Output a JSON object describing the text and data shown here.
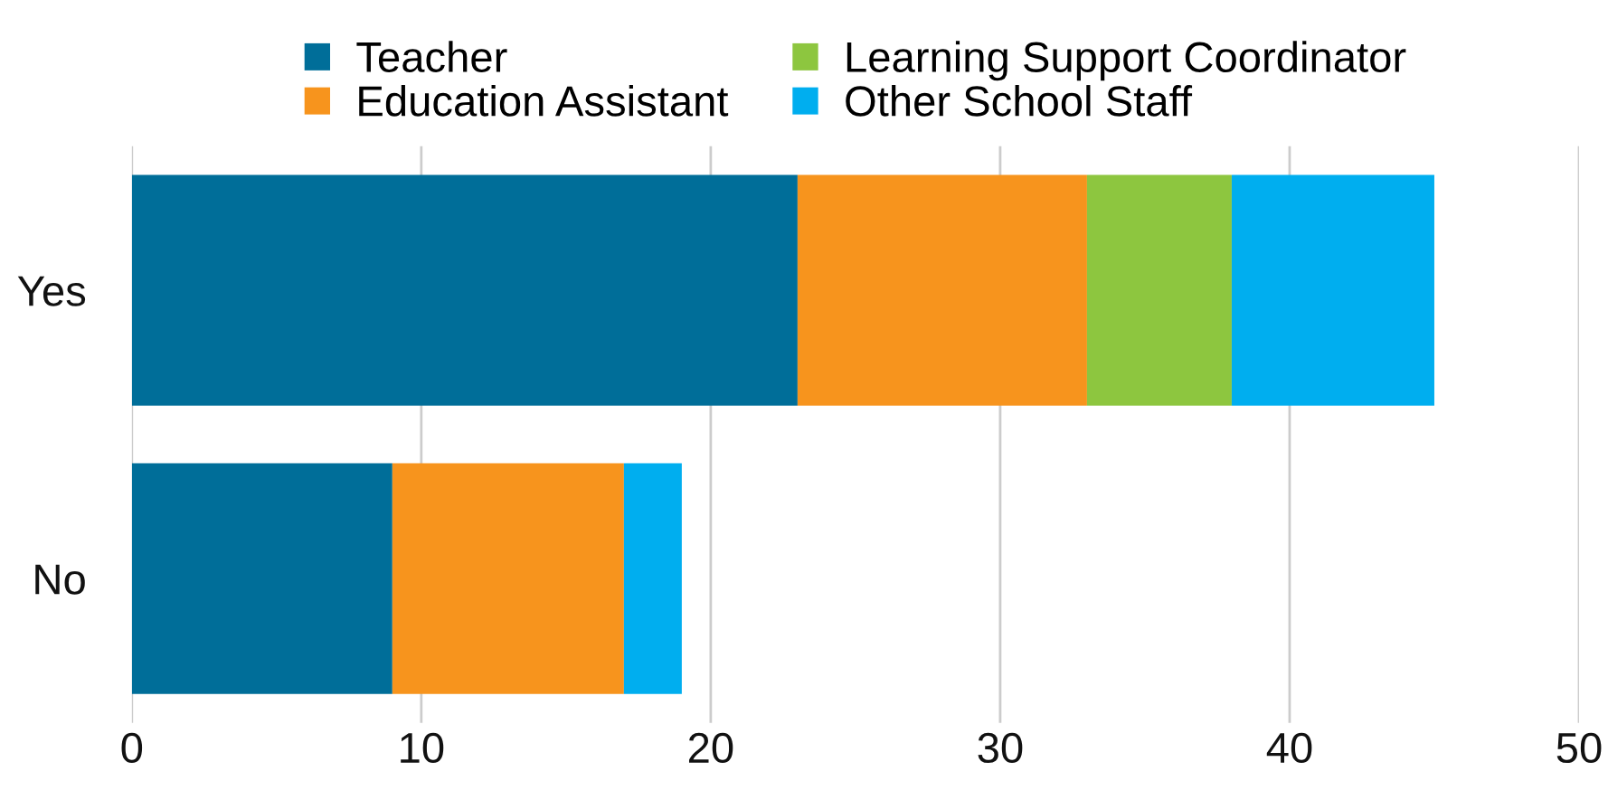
{
  "chart_data": {
    "type": "bar",
    "orientation": "horizontal",
    "stacked": true,
    "categories": [
      "Yes",
      "No"
    ],
    "series": [
      {
        "name": "Teacher",
        "color": "#006e99",
        "values": [
          23,
          9
        ]
      },
      {
        "name": "Education Assistant",
        "color": "#f7941d",
        "values": [
          10,
          8
        ]
      },
      {
        "name": "Learning Support Coordinator",
        "color": "#8dc63f",
        "values": [
          5,
          0
        ]
      },
      {
        "name": "Other School Staff",
        "color": "#00aeef",
        "values": [
          7,
          2
        ]
      }
    ],
    "xlim": [
      0,
      50
    ],
    "xticks": [
      0,
      10,
      20,
      30,
      40,
      50
    ],
    "grid": "x",
    "legend": "top"
  }
}
